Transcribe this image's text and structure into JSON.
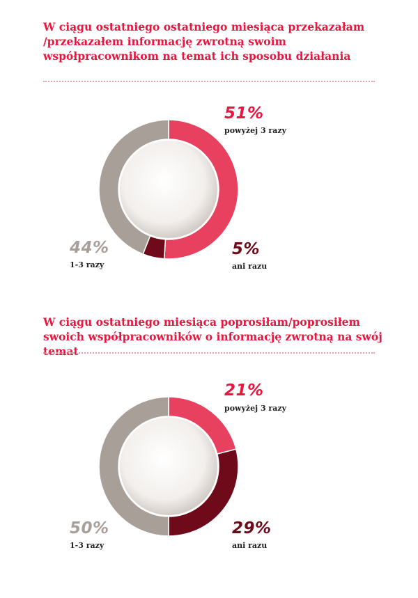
{
  "chart_data": [
    {
      "type": "pie",
      "title": "W ciągu ostatniego ostatniego miesiąca przekazałam /przekazałem informację zwrotną swoim współpracownikom na temat ich sposobu działania",
      "title_lines": [
        "W ciągu ostatniego ostatniego miesiąca przekazałam",
        "/przekazałem informację zwrotną swoim",
        "współpracownikom na temat ich sposobu działania"
      ],
      "slices": [
        {
          "label": "powyżej 3 razy",
          "value": 51,
          "display": "51%",
          "color": "#e8405f"
        },
        {
          "label": "ani razu",
          "value": 5,
          "display": "5%",
          "color": "#6e0a1a"
        },
        {
          "label": "1-3 razy",
          "value": 44,
          "display": "44%",
          "color": "#a99f99"
        }
      ]
    },
    {
      "type": "pie",
      "title": "W ciągu ostatniego miesiąca poprosiłam/poprosiłem swoich współpracowników o informację zwrotną na swój temat",
      "title_lines": [
        "W ciągu ostatniego miesiąca poprosiłam/poprosiłem",
        "swoich współpracowników o informację zwrotną na swój temat"
      ],
      "slices": [
        {
          "label": "powyżej 3 razy",
          "value": 21,
          "display": "21%",
          "color": "#e8405f"
        },
        {
          "label": "ani razu",
          "value": 29,
          "display": "29%",
          "color": "#6e0a1a"
        },
        {
          "label": "1-3 razy",
          "value": 50,
          "display": "50%",
          "color": "#a99f99"
        }
      ]
    }
  ],
  "colors": {
    "title": "#e8173f",
    "divider": "#e8a0ae",
    "center_fill": "#f2efec"
  }
}
